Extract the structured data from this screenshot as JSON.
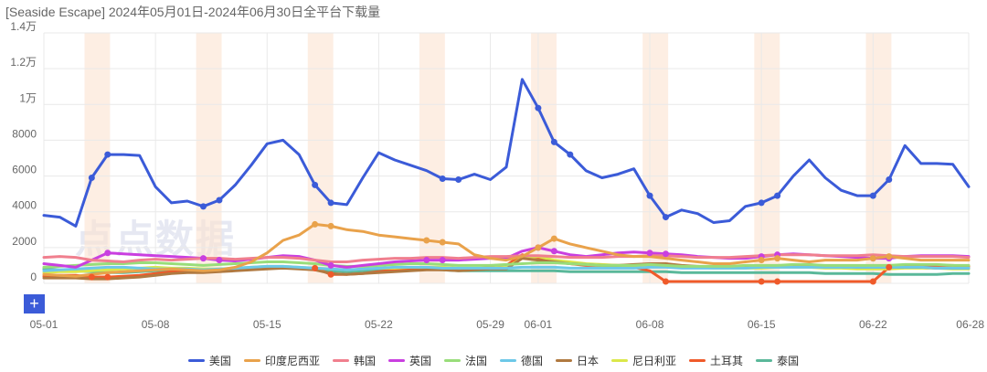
{
  "title": "[Seaside Escape] 2024年05月01日-2024年06月30日全平台下载量",
  "watermark": "点点数据",
  "add_button": "+",
  "chart_data": {
    "type": "line",
    "title": "[Seaside Escape] 2024年05月01日-2024年06月30日全平台下载量",
    "xlabel": "",
    "ylabel": "",
    "ylim": [
      0,
      14000
    ],
    "yticks": [
      {
        "value": 0,
        "label": "0"
      },
      {
        "value": 2000,
        "label": "2000"
      },
      {
        "value": 4000,
        "label": "4000"
      },
      {
        "value": 6000,
        "label": "6000"
      },
      {
        "value": 8000,
        "label": "8000"
      },
      {
        "value": 10000,
        "label": "1万"
      },
      {
        "value": 12000,
        "label": "1.2万"
      },
      {
        "value": 14000,
        "label": "1.4万"
      }
    ],
    "xticks": [
      {
        "day": 1,
        "label": "05-01"
      },
      {
        "day": 8,
        "label": "05-08"
      },
      {
        "day": 15,
        "label": "05-15"
      },
      {
        "day": 22,
        "label": "05-22"
      },
      {
        "day": 29,
        "label": "05-29"
      },
      {
        "day": 32,
        "label": "06-01"
      },
      {
        "day": 39,
        "label": "06-08"
      },
      {
        "day": 46,
        "label": "06-15"
      },
      {
        "day": 53,
        "label": "06-22"
      },
      {
        "day": 59,
        "label": "06-28"
      }
    ],
    "highlight_days": [
      4,
      11,
      18,
      25,
      32,
      39,
      46,
      53
    ],
    "legend_position": "bottom",
    "grid": true,
    "series": [
      {
        "name": "美国",
        "color": "#3b5bd8",
        "markers": [
          4,
          5,
          11,
          12,
          18,
          19,
          26,
          27,
          32,
          33,
          34,
          39,
          40,
          46,
          47,
          53,
          54
        ],
        "values": [
          3800,
          3700,
          3200,
          5900,
          7200,
          7200,
          7150,
          5400,
          4500,
          4600,
          4300,
          4650,
          5500,
          6600,
          7800,
          8000,
          7200,
          5500,
          4500,
          4400,
          5900,
          7300,
          6900,
          6600,
          6300,
          5850,
          5800,
          6100,
          5800,
          6500,
          11400,
          9800,
          7900,
          7200,
          6300,
          5900,
          6100,
          6400,
          4900,
          3700,
          4100,
          3900,
          3400,
          3500,
          4300,
          4500,
          4900,
          6000,
          6900,
          5900,
          5200,
          4900,
          4900,
          5800,
          7700,
          6700,
          6700,
          6650,
          5400
        ]
      },
      {
        "name": "印度尼西亚",
        "color": "#e9a24b",
        "markers": [
          18,
          19,
          25,
          26,
          32,
          33,
          46,
          47,
          53,
          54
        ],
        "values": [
          500,
          450,
          400,
          500,
          600,
          650,
          700,
          750,
          800,
          750,
          700,
          750,
          900,
          1200,
          1700,
          2400,
          2700,
          3300,
          3200,
          3000,
          2900,
          2700,
          2600,
          2500,
          2400,
          2300,
          2200,
          1600,
          1400,
          1300,
          1500,
          2000,
          2500,
          2200,
          2000,
          1800,
          1600,
          1500,
          1500,
          1400,
          1300,
          1200,
          1100,
          1100,
          1200,
          1300,
          1400,
          1300,
          1200,
          1300,
          1300,
          1300,
          1400,
          1500,
          1400,
          1300,
          1300,
          1300,
          1300
        ]
      },
      {
        "name": "韩国",
        "color": "#f07f8e",
        "markers": [],
        "values": [
          1450,
          1500,
          1450,
          1300,
          1250,
          1200,
          1300,
          1350,
          1300,
          1350,
          1400,
          1400,
          1350,
          1400,
          1450,
          1450,
          1400,
          1300,
          1200,
          1200,
          1300,
          1350,
          1400,
          1400,
          1450,
          1450,
          1400,
          1450,
          1500,
          1500,
          1550,
          1550,
          1500,
          1450,
          1450,
          1450,
          1500,
          1500,
          1550,
          1550,
          1500,
          1450,
          1450,
          1450,
          1500,
          1550,
          1600,
          1600,
          1600,
          1550,
          1550,
          1550,
          1600,
          1550,
          1500,
          1500,
          1500,
          1500,
          1450
        ]
      },
      {
        "name": "英国",
        "color": "#c93fe0",
        "markers": [
          5,
          11,
          12,
          19,
          25,
          26,
          32,
          33,
          39,
          40,
          46,
          47,
          53,
          54
        ],
        "values": [
          1100,
          1000,
          900,
          1300,
          1700,
          1650,
          1600,
          1550,
          1500,
          1450,
          1400,
          1300,
          1250,
          1350,
          1450,
          1550,
          1500,
          1300,
          1000,
          900,
          1000,
          1100,
          1200,
          1250,
          1300,
          1300,
          1300,
          1350,
          1400,
          1400,
          1800,
          2000,
          1800,
          1600,
          1500,
          1600,
          1700,
          1750,
          1700,
          1650,
          1600,
          1500,
          1450,
          1400,
          1400,
          1500,
          1600,
          1650,
          1600,
          1550,
          1500,
          1450,
          1400,
          1400,
          1500,
          1550,
          1550,
          1550,
          1500
        ]
      },
      {
        "name": "法国",
        "color": "#99dd7a",
        "markers": [],
        "values": [
          900,
          950,
          1000,
          1050,
          1100,
          1100,
          1150,
          1150,
          1100,
          1050,
          1000,
          1050,
          1100,
          1150,
          1200,
          1200,
          1150,
          1100,
          1000,
          950,
          950,
          1000,
          1050,
          1100,
          1100,
          1050,
          1000,
          1000,
          1000,
          1050,
          1100,
          1150,
          1150,
          1100,
          1050,
          1000,
          1000,
          1000,
          1050,
          1000,
          950,
          950,
          950,
          950,
          1000,
          1000,
          1000,
          1050,
          1050,
          1000,
          1000,
          1000,
          1000,
          1000,
          1050,
          1050,
          1050,
          1000,
          1000
        ]
      },
      {
        "name": "德国",
        "color": "#6dc8e8",
        "markers": [],
        "values": [
          700,
          750,
          800,
          850,
          900,
          900,
          850,
          800,
          800,
          800,
          750,
          800,
          850,
          900,
          950,
          950,
          900,
          850,
          800,
          750,
          800,
          850,
          900,
          900,
          900,
          850,
          850,
          850,
          850,
          850,
          900,
          900,
          900,
          850,
          850,
          850,
          850,
          850,
          900,
          900,
          850,
          850,
          850,
          850,
          850,
          900,
          900,
          900,
          900,
          900,
          900,
          900,
          900,
          900,
          900,
          900,
          850,
          850,
          850
        ]
      },
      {
        "name": "日本",
        "color": "#b07940",
        "markers": [],
        "values": [
          300,
          300,
          300,
          250,
          250,
          300,
          350,
          450,
          550,
          600,
          600,
          650,
          700,
          750,
          800,
          850,
          800,
          750,
          550,
          500,
          550,
          600,
          650,
          700,
          750,
          750,
          700,
          750,
          800,
          800,
          1400,
          1300,
          1200,
          1100,
          1050,
          1000,
          1000,
          1050,
          1100,
          1100,
          1000,
          950,
          900,
          900,
          900,
          950,
          950,
          1000,
          1000,
          950,
          950,
          900,
          900,
          900,
          900,
          900,
          850,
          850,
          850
        ]
      },
      {
        "name": "尼日利亚",
        "color": "#dbe84a",
        "markers": [],
        "values": [
          600,
          650,
          650,
          700,
          750,
          800,
          850,
          900,
          850,
          850,
          800,
          800,
          850,
          900,
          950,
          950,
          900,
          850,
          800,
          750,
          800,
          850,
          850,
          900,
          900,
          900,
          850,
          850,
          850,
          900,
          1400,
          1500,
          1300,
          1200,
          1100,
          1050,
          1000,
          1000,
          1000,
          950,
          900,
          900,
          850,
          850,
          850,
          850,
          900,
          900,
          900,
          850,
          850,
          800,
          800,
          800,
          850,
          850,
          850,
          800,
          800
        ]
      },
      {
        "name": "土耳其",
        "color": "#ef5a2a",
        "markers": [
          4,
          5,
          18,
          19,
          40,
          46,
          47,
          53,
          54
        ],
        "values": [
          400,
          450,
          450,
          350,
          350,
          400,
          450,
          550,
          650,
          700,
          750,
          750,
          750,
          800,
          850,
          900,
          850,
          850,
          500,
          500,
          550,
          650,
          750,
          800,
          850,
          850,
          800,
          800,
          900,
          1000,
          1600,
          1400,
          1200,
          1100,
          1000,
          1000,
          1000,
          900,
          700,
          100,
          100,
          100,
          100,
          100,
          100,
          100,
          100,
          100,
          100,
          100,
          100,
          100,
          100,
          900,
          950,
          1000,
          1000,
          1000,
          950
        ]
      },
      {
        "name": "泰国",
        "color": "#5ab89a",
        "markers": [],
        "values": [
          800,
          750,
          700,
          650,
          600,
          600,
          650,
          700,
          750,
          750,
          700,
          750,
          800,
          850,
          900,
          900,
          850,
          800,
          700,
          650,
          700,
          750,
          800,
          800,
          800,
          750,
          700,
          700,
          700,
          700,
          700,
          700,
          700,
          650,
          650,
          650,
          650,
          650,
          650,
          650,
          600,
          600,
          600,
          600,
          600,
          600,
          600,
          600,
          600,
          550,
          550,
          550,
          550,
          500,
          500,
          500,
          500,
          550,
          550
        ]
      }
    ]
  }
}
